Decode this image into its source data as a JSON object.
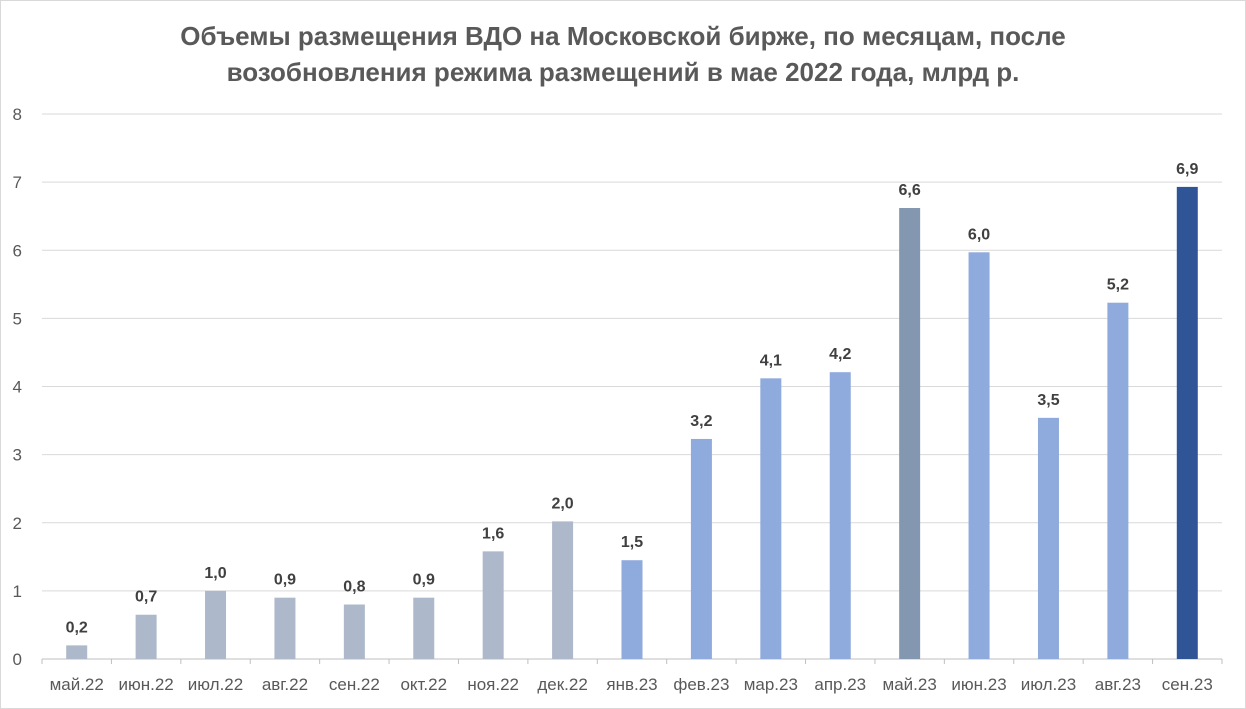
{
  "chart_data": {
    "type": "bar",
    "title_lines": [
      "Объемы размещения ВДО на Московской бирже, по месяцам, после",
      "возобновления режима размещений в мае 2022 года, млрд р."
    ],
    "xlabel": "",
    "ylabel": "",
    "ylim": [
      0,
      8
    ],
    "yticks": [
      "0",
      "1",
      "2",
      "3",
      "4",
      "5",
      "6",
      "7",
      "8"
    ],
    "grid": true,
    "legend": "none",
    "categories": [
      "май.22",
      "июн.22",
      "июл.22",
      "авг.22",
      "сен.22",
      "окт.22",
      "ноя.22",
      "дек.22",
      "янв.23",
      "фев.23",
      "мар.23",
      "апр.23",
      "май.23",
      "июн.23",
      "июл.23",
      "авг.23",
      "сен.23"
    ],
    "values": [
      0.2,
      0.65,
      1.0,
      0.9,
      0.8,
      0.9,
      1.58,
      2.02,
      1.45,
      3.23,
      4.12,
      4.21,
      6.62,
      5.97,
      3.54,
      5.23,
      6.93
    ],
    "data_labels": [
      "0,2",
      "0,7",
      "1,0",
      "0,9",
      "0,8",
      "0,9",
      "1,6",
      "2,0",
      "1,5",
      "3,2",
      "4,1",
      "4,2",
      "6,6",
      "6,0",
      "3,5",
      "5,2",
      "6,9"
    ],
    "bar_colors": [
      "#adb9ca",
      "#adb9ca",
      "#adb9ca",
      "#adb9ca",
      "#adb9ca",
      "#adb9ca",
      "#adb9ca",
      "#adb9ca",
      "#8faadc",
      "#8faadc",
      "#8faadc",
      "#8faadc",
      "#8497b0",
      "#8faadc",
      "#8faadc",
      "#8faadc",
      "#2f5597"
    ],
    "grid_color": "#d9d9d9",
    "axis_color": "#bfbfbf"
  }
}
